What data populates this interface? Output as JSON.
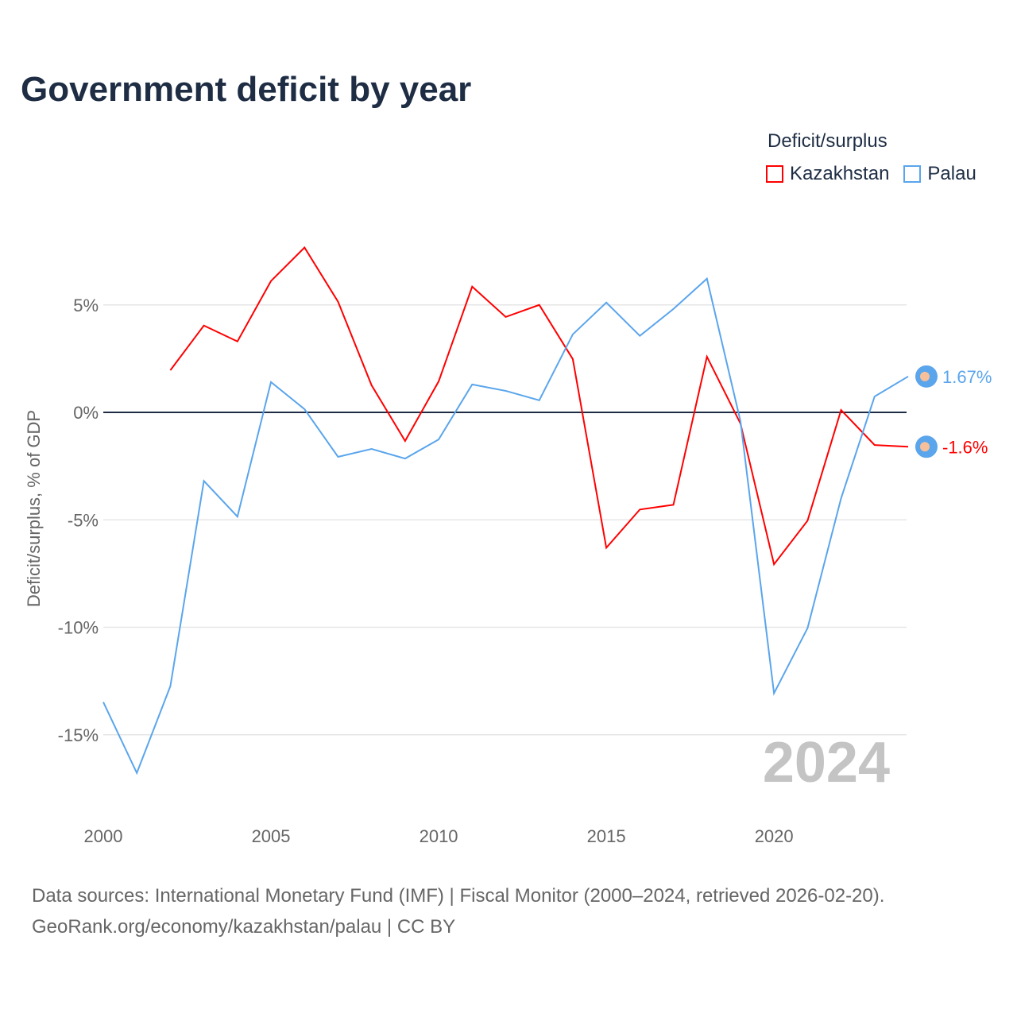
{
  "chart_data": {
    "type": "line",
    "title": "Government deficit by year",
    "xlabel": "",
    "ylabel": "Deficit/surplus, % of GDP",
    "xlim": [
      2000,
      2024
    ],
    "ylim": [
      -18,
      9
    ],
    "xticks": [
      2000,
      2005,
      2010,
      2015,
      2020
    ],
    "xtick_labels": [
      "2000",
      "2005",
      "2010",
      "2015",
      "2020"
    ],
    "yticks": [
      5,
      0,
      -5,
      -10,
      -15
    ],
    "ytick_labels": [
      "5%",
      "0%",
      "-5%",
      "-10%",
      "-15%"
    ],
    "legend_title": "Deficit/surplus",
    "legend_position": "top-right",
    "year_watermark": "2024",
    "series": [
      {
        "name": "Kazakhstan",
        "color": "#ff0000",
        "end_label": "-1.6%",
        "x": [
          2002,
          2003,
          2004,
          2005,
          2006,
          2007,
          2008,
          2009,
          2010,
          2011,
          2012,
          2013,
          2014,
          2015,
          2016,
          2017,
          2018,
          2019,
          2020,
          2021,
          2022,
          2023,
          2024
        ],
        "values": [
          1.96,
          4.04,
          3.3,
          6.11,
          7.67,
          5.15,
          1.26,
          -1.33,
          1.44,
          5.85,
          4.44,
          5.0,
          2.48,
          -6.3,
          -4.52,
          -4.3,
          2.59,
          -0.52,
          -7.07,
          -5.04,
          0.11,
          -1.52,
          -1.6
        ]
      },
      {
        "name": "Palau",
        "color": "#5aa5ec",
        "end_label": "1.67%",
        "x": [
          2000,
          2001,
          2002,
          2003,
          2004,
          2005,
          2006,
          2007,
          2008,
          2009,
          2010,
          2011,
          2012,
          2013,
          2014,
          2015,
          2016,
          2017,
          2018,
          2019,
          2020,
          2021,
          2022,
          2023,
          2024
        ],
        "values": [
          -13.48,
          -16.78,
          -12.74,
          -3.19,
          -4.85,
          1.41,
          0.15,
          -2.07,
          -1.7,
          -2.15,
          -1.26,
          1.3,
          1.0,
          0.56,
          3.63,
          5.11,
          3.56,
          4.81,
          6.22,
          -0.41,
          -13.07,
          -10.04,
          -4.0,
          0.74,
          1.67
        ]
      }
    ]
  },
  "footer": {
    "line1": "Data sources: International Monetary Fund (IMF) | Fiscal Monitor (2000–2024, retrieved 2026-02-20).",
    "line2": "GeoRank.org/economy/kazakhstan/palau | CC BY"
  }
}
